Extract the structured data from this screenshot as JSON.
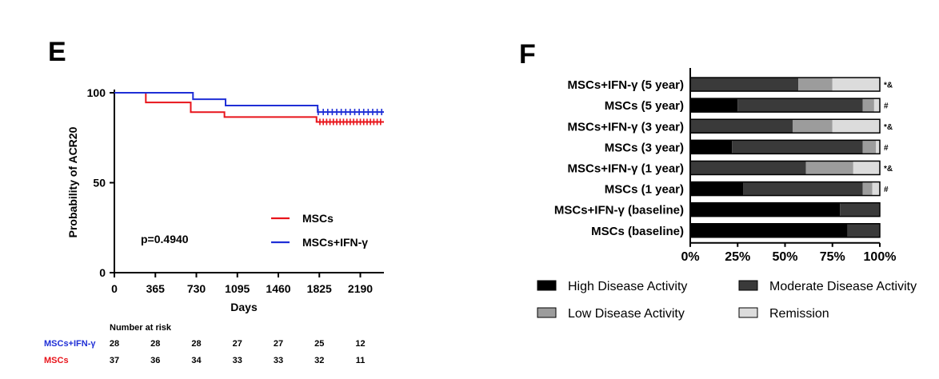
{
  "colors": {
    "msc": "#e8141b",
    "ifn": "#1f2fd6",
    "high": "#000000",
    "moderate": "#3a3a3a",
    "low": "#9c9c9c",
    "remission": "#dcdcdc"
  },
  "chart_data": [
    {
      "type": "line",
      "panel": "E",
      "xlabel": "Days",
      "ylabel": "Probability of ACR20",
      "xlim": [
        0,
        2400
      ],
      "ylim": [
        0,
        100
      ],
      "x_ticks": [
        0,
        365,
        730,
        1095,
        1460,
        1825,
        2190
      ],
      "y_ticks": [
        0,
        50,
        100
      ],
      "annotation": "p=0.4940",
      "legend_position": "lower-right",
      "series": [
        {
          "name": "MSCs",
          "color": "#e8141b",
          "steps": [
            [
              0,
              100
            ],
            [
              280,
              94.6
            ],
            [
              680,
              89.2
            ],
            [
              980,
              86.5
            ],
            [
              1800,
              83.8
            ],
            [
              2400,
              83.8
            ]
          ],
          "censor_x": [
            1830,
            1860,
            1890,
            1920,
            1950,
            1980,
            2010,
            2040,
            2070,
            2100,
            2130,
            2160,
            2190,
            2220,
            2250,
            2280,
            2310,
            2340,
            2370
          ]
        },
        {
          "name": "MSCs+IFN-γ",
          "color": "#1f2fd6",
          "steps": [
            [
              0,
              100
            ],
            [
              700,
              96.4
            ],
            [
              990,
              92.9
            ],
            [
              1810,
              89.3
            ],
            [
              2400,
              89.3
            ]
          ],
          "censor_x": [
            1815,
            1860,
            1900,
            1940,
            1980,
            2020,
            2060,
            2100,
            2140,
            2180,
            2220,
            2260,
            2300,
            2340,
            2380
          ]
        }
      ],
      "risk_table": {
        "title": "Number at risk",
        "rows": [
          {
            "label": "MSCs+IFN-γ",
            "color": "#1f2fd6",
            "values": [
              "28",
              "28",
              "28",
              "27",
              "27",
              "25",
              "12"
            ]
          },
          {
            "label": "MSCs",
            "color": "#e8141b",
            "values": [
              "37",
              "36",
              "34",
              "33",
              "33",
              "32",
              "11"
            ]
          }
        ]
      }
    },
    {
      "type": "bar",
      "panel": "F",
      "orientation": "horizontal",
      "stacked": true,
      "percent_ticks": [
        "0%",
        "25%",
        "50%",
        "75%",
        "100%"
      ],
      "categories": [
        "MSCs+IFN-γ (5 year)",
        "MSCs (5 year)",
        "MSCs+IFN-γ (3 year)",
        "MSCs (3 year)",
        "MSCs+IFN-γ (1 year)",
        "MSCs (1 year)",
        "MSCs+IFN-γ (baseline)",
        "MSCs (baseline)"
      ],
      "markers": [
        "*&",
        "#",
        "*&",
        "#",
        "*&",
        "#",
        "",
        ""
      ],
      "series": [
        {
          "name": "High Disease Activity",
          "color": "#000000",
          "values": [
            0,
            25,
            0,
            22,
            0,
            28,
            79,
            83
          ]
        },
        {
          "name": "Moderate Disease Activity",
          "color": "#3a3a3a",
          "values": [
            57,
            66,
            54,
            69,
            61,
            63,
            21,
            17
          ]
        },
        {
          "name": "Low Disease Activity",
          "color": "#9c9c9c",
          "values": [
            18,
            6,
            21,
            7,
            25,
            5,
            0,
            0
          ]
        },
        {
          "name": "Remission",
          "color": "#dcdcdc",
          "values": [
            25,
            3,
            25,
            2,
            14,
            4,
            0,
            0
          ]
        }
      ],
      "legend_position": "bottom"
    }
  ],
  "panel_labels": {
    "e": "E",
    "f": "F"
  }
}
